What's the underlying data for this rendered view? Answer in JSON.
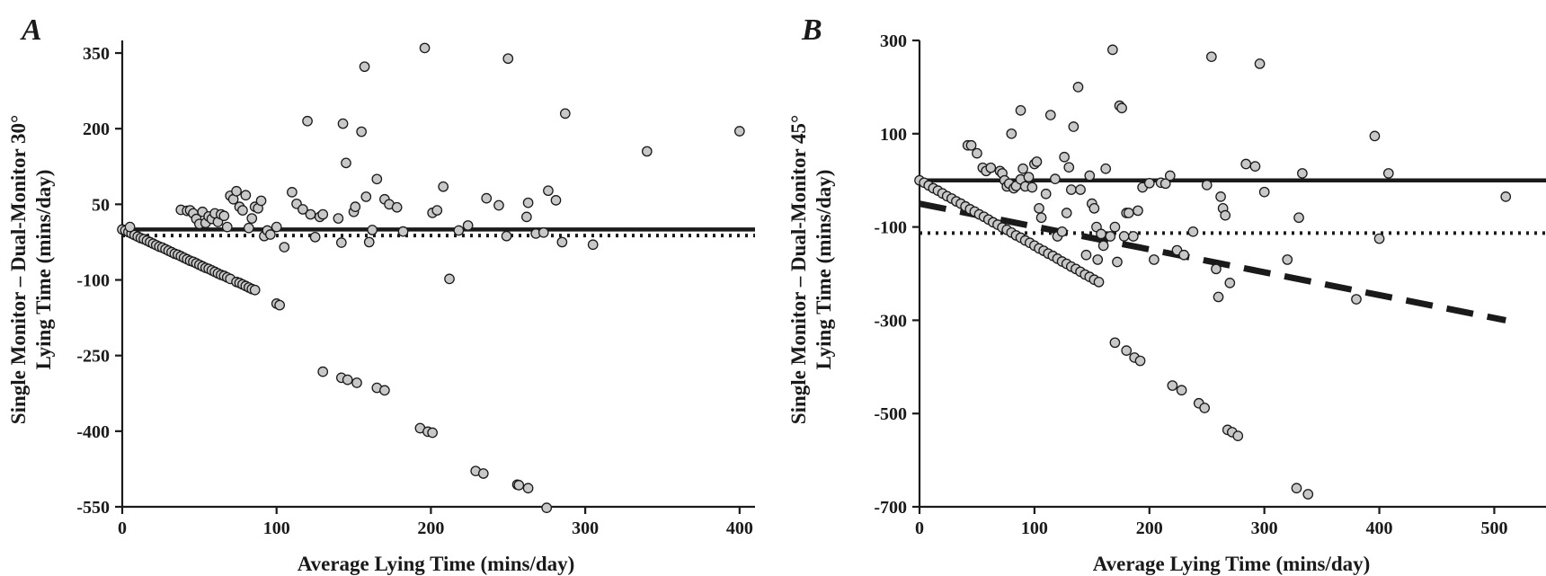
{
  "chart_data": [
    {
      "panel": "A",
      "type": "scatter",
      "xlabel": "Average Lying Time (mins/day)",
      "ylabel_lines": [
        "Single Monitor – Dual-Monitor 30°",
        "Lying Time (mins/day)"
      ],
      "xlim": [
        0,
        410
      ],
      "ylim": [
        -550,
        375
      ],
      "xticks": [
        0,
        100,
        200,
        300,
        400
      ],
      "yticks": [
        350,
        200,
        50,
        -100,
        -250,
        -400,
        -550
      ],
      "lines": [
        {
          "style": "solid",
          "y": 0
        },
        {
          "style": "dotted",
          "y": -12
        }
      ],
      "points": [
        [
          0,
          0
        ],
        [
          2,
          -2
        ],
        [
          4,
          -5
        ],
        [
          6,
          -8
        ],
        [
          8,
          -11
        ],
        [
          10,
          -14
        ],
        [
          12,
          -17
        ],
        [
          14,
          -19
        ],
        [
          16,
          -22
        ],
        [
          18,
          -25
        ],
        [
          20,
          -28
        ],
        [
          22,
          -31
        ],
        [
          24,
          -34
        ],
        [
          26,
          -36
        ],
        [
          28,
          -39
        ],
        [
          30,
          -42
        ],
        [
          32,
          -45
        ],
        [
          34,
          -48
        ],
        [
          36,
          -50
        ],
        [
          38,
          -53
        ],
        [
          40,
          -56
        ],
        [
          42,
          -59
        ],
        [
          44,
          -62
        ],
        [
          46,
          -64
        ],
        [
          48,
          -67
        ],
        [
          50,
          -70
        ],
        [
          52,
          -73
        ],
        [
          54,
          -76
        ],
        [
          56,
          -78
        ],
        [
          58,
          -81
        ],
        [
          60,
          -84
        ],
        [
          62,
          -87
        ],
        [
          64,
          -90
        ],
        [
          66,
          -92
        ],
        [
          68,
          -95
        ],
        [
          70,
          -98
        ],
        [
          74,
          -104
        ],
        [
          76,
          -106
        ],
        [
          78,
          -109
        ],
        [
          80,
          -112
        ],
        [
          82,
          -115
        ],
        [
          84,
          -118
        ],
        [
          86,
          -120
        ],
        [
          5,
          5
        ],
        [
          100,
          -147
        ],
        [
          102,
          -150
        ],
        [
          130,
          -282
        ],
        [
          142,
          -294
        ],
        [
          146,
          -298
        ],
        [
          152,
          -304
        ],
        [
          165,
          -314
        ],
        [
          170,
          -319
        ],
        [
          193,
          -394
        ],
        [
          198,
          -401
        ],
        [
          201,
          -403
        ],
        [
          229,
          -479
        ],
        [
          234,
          -484
        ],
        [
          256,
          -506
        ],
        [
          257,
          -507
        ],
        [
          263,
          -513
        ],
        [
          275,
          -552
        ],
        [
          38,
          39
        ],
        [
          42,
          37
        ],
        [
          44,
          38
        ],
        [
          46,
          32
        ],
        [
          48,
          21
        ],
        [
          50,
          11
        ],
        [
          52,
          35
        ],
        [
          54,
          13
        ],
        [
          56,
          26
        ],
        [
          58,
          21
        ],
        [
          60,
          32
        ],
        [
          62,
          15
        ],
        [
          64,
          30
        ],
        [
          66,
          27
        ],
        [
          68,
          5
        ],
        [
          70,
          67
        ],
        [
          72,
          60
        ],
        [
          74,
          76
        ],
        [
          76,
          45
        ],
        [
          78,
          38
        ],
        [
          80,
          68
        ],
        [
          82,
          3
        ],
        [
          84,
          22
        ],
        [
          86,
          45
        ],
        [
          88,
          42
        ],
        [
          90,
          57
        ],
        [
          92,
          -13
        ],
        [
          94,
          -2
        ],
        [
          96,
          -10
        ],
        [
          100,
          5
        ],
        [
          105,
          -35
        ],
        [
          110,
          74
        ],
        [
          113,
          51
        ],
        [
          117,
          40
        ],
        [
          120,
          215
        ],
        [
          122,
          30
        ],
        [
          125,
          -15
        ],
        [
          128,
          25
        ],
        [
          130,
          30
        ],
        [
          140,
          22
        ],
        [
          142,
          -26
        ],
        [
          143,
          210
        ],
        [
          145,
          132
        ],
        [
          150,
          35
        ],
        [
          151,
          45
        ],
        [
          155,
          194
        ],
        [
          157,
          323
        ],
        [
          158,
          65
        ],
        [
          160,
          -25
        ],
        [
          162,
          -1
        ],
        [
          165,
          100
        ],
        [
          170,
          60
        ],
        [
          173,
          50
        ],
        [
          178,
          44
        ],
        [
          182,
          -4
        ],
        [
          196,
          360
        ],
        [
          201,
          33
        ],
        [
          204,
          38
        ],
        [
          208,
          85
        ],
        [
          212,
          -98
        ],
        [
          218,
          -2
        ],
        [
          224,
          8
        ],
        [
          236,
          62
        ],
        [
          244,
          48
        ],
        [
          249,
          -13
        ],
        [
          250,
          339
        ],
        [
          262,
          25
        ],
        [
          263,
          53
        ],
        [
          268,
          -8
        ],
        [
          273,
          -6
        ],
        [
          276,
          77
        ],
        [
          281,
          58
        ],
        [
          285,
          -25
        ],
        [
          287,
          230
        ],
        [
          305,
          -30
        ],
        [
          340,
          155
        ],
        [
          400,
          195
        ]
      ]
    },
    {
      "panel": "B",
      "type": "scatter",
      "xlabel": "Average Lying Time (mins/day)",
      "ylabel_lines": [
        "Single Monitor – Dual-Monitor 45°",
        "Lying Time (mins/day)"
      ],
      "xlim": [
        0,
        545
      ],
      "ylim": [
        -700,
        300
      ],
      "xticks": [
        0,
        100,
        200,
        300,
        400,
        500
      ],
      "yticks": [
        300,
        100,
        -100,
        -300,
        -500,
        -700
      ],
      "lines": [
        {
          "style": "solid",
          "y": 0
        },
        {
          "style": "dotted",
          "y": -113
        },
        {
          "style": "dashed",
          "x": [
            0,
            510
          ],
          "y": [
            -50,
            -300
          ]
        }
      ],
      "points": [
        [
          0,
          0
        ],
        [
          4,
          -5
        ],
        [
          8,
          -11
        ],
        [
          12,
          -17
        ],
        [
          16,
          -22
        ],
        [
          20,
          -28
        ],
        [
          24,
          -34
        ],
        [
          28,
          -39
        ],
        [
          32,
          -45
        ],
        [
          36,
          -50
        ],
        [
          40,
          -56
        ],
        [
          44,
          -62
        ],
        [
          48,
          -67
        ],
        [
          52,
          -73
        ],
        [
          56,
          -78
        ],
        [
          60,
          -84
        ],
        [
          64,
          -90
        ],
        [
          68,
          -95
        ],
        [
          72,
          -101
        ],
        [
          76,
          -106
        ],
        [
          80,
          -112
        ],
        [
          84,
          -118
        ],
        [
          88,
          -123
        ],
        [
          92,
          -129
        ],
        [
          96,
          -134
        ],
        [
          100,
          -140
        ],
        [
          104,
          -146
        ],
        [
          108,
          -151
        ],
        [
          112,
          -157
        ],
        [
          116,
          -162
        ],
        [
          120,
          -168
        ],
        [
          124,
          -174
        ],
        [
          128,
          -179
        ],
        [
          132,
          -185
        ],
        [
          136,
          -190
        ],
        [
          140,
          -196
        ],
        [
          144,
          -202
        ],
        [
          148,
          -207
        ],
        [
          152,
          -213
        ],
        [
          156,
          -218
        ],
        [
          170,
          -348
        ],
        [
          180,
          -365
        ],
        [
          187,
          -380
        ],
        [
          192,
          -387
        ],
        [
          220,
          -440
        ],
        [
          228,
          -450
        ],
        [
          243,
          -478
        ],
        [
          248,
          -488
        ],
        [
          268,
          -535
        ],
        [
          272,
          -540
        ],
        [
          277,
          -548
        ],
        [
          328,
          -660
        ],
        [
          338,
          -673
        ],
        [
          42,
          75
        ],
        [
          45,
          75
        ],
        [
          50,
          58
        ],
        [
          55,
          27
        ],
        [
          58,
          20
        ],
        [
          62,
          27
        ],
        [
          70,
          20
        ],
        [
          72,
          15
        ],
        [
          74,
          0
        ],
        [
          76,
          -13
        ],
        [
          78,
          -7
        ],
        [
          80,
          100
        ],
        [
          82,
          -17
        ],
        [
          84,
          -12
        ],
        [
          88,
          150
        ],
        [
          88,
          2
        ],
        [
          90,
          25
        ],
        [
          92,
          -13
        ],
        [
          95,
          7
        ],
        [
          98,
          -15
        ],
        [
          100,
          35
        ],
        [
          102,
          40
        ],
        [
          104,
          -60
        ],
        [
          106,
          -80
        ],
        [
          110,
          -29
        ],
        [
          114,
          140
        ],
        [
          118,
          3
        ],
        [
          120,
          -120
        ],
        [
          124,
          -110
        ],
        [
          126,
          50
        ],
        [
          128,
          -70
        ],
        [
          130,
          28
        ],
        [
          132,
          -20
        ],
        [
          134,
          115
        ],
        [
          138,
          200
        ],
        [
          140,
          -20
        ],
        [
          145,
          -160
        ],
        [
          148,
          10
        ],
        [
          150,
          -50
        ],
        [
          152,
          -60
        ],
        [
          154,
          -100
        ],
        [
          155,
          -170
        ],
        [
          158,
          -115
        ],
        [
          160,
          -140
        ],
        [
          162,
          25
        ],
        [
          166,
          -120
        ],
        [
          168,
          280
        ],
        [
          170,
          -100
        ],
        [
          172,
          -175
        ],
        [
          174,
          160
        ],
        [
          176,
          155
        ],
        [
          178,
          -120
        ],
        [
          180,
          -70
        ],
        [
          182,
          -70
        ],
        [
          186,
          -120
        ],
        [
          190,
          -65
        ],
        [
          194,
          -15
        ],
        [
          200,
          -6
        ],
        [
          204,
          -170
        ],
        [
          210,
          -5
        ],
        [
          214,
          -7
        ],
        [
          218,
          10
        ],
        [
          224,
          -150
        ],
        [
          230,
          -160
        ],
        [
          238,
          -110
        ],
        [
          250,
          -10
        ],
        [
          254,
          265
        ],
        [
          258,
          -190
        ],
        [
          260,
          -250
        ],
        [
          262,
          -35
        ],
        [
          264,
          -60
        ],
        [
          266,
          -75
        ],
        [
          270,
          -220
        ],
        [
          284,
          35
        ],
        [
          292,
          30
        ],
        [
          296,
          250
        ],
        [
          300,
          -25
        ],
        [
          320,
          -170
        ],
        [
          330,
          -80
        ],
        [
          333,
          15
        ],
        [
          380,
          -255
        ],
        [
          396,
          95
        ],
        [
          400,
          -125
        ],
        [
          408,
          15
        ],
        [
          510,
          -35
        ]
      ]
    }
  ]
}
